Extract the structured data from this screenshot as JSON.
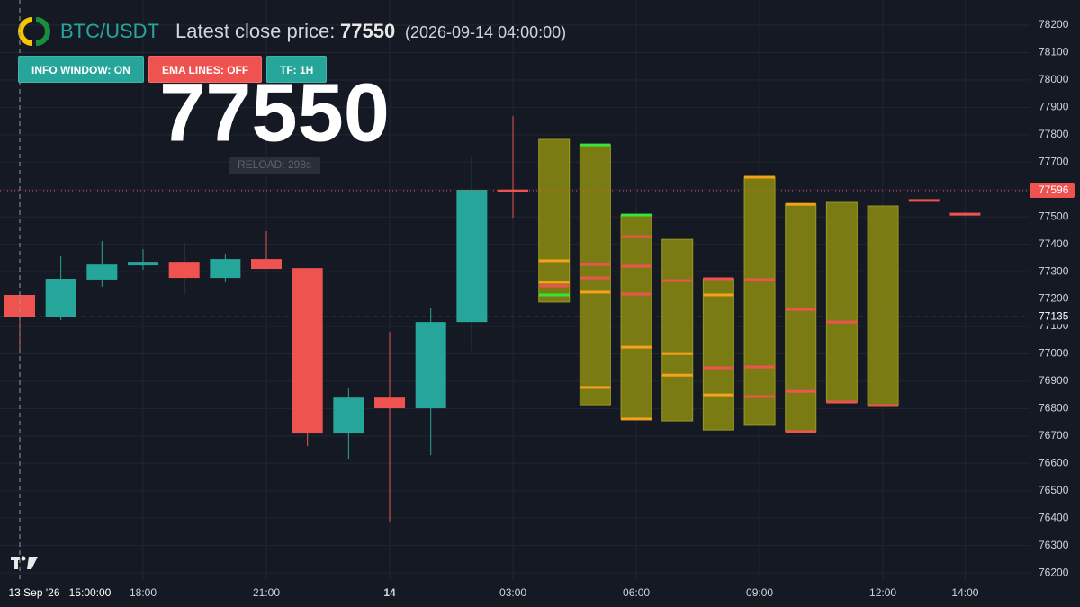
{
  "chart_data": {
    "type": "candlestick",
    "symbol": "BTC/USDT",
    "latest_close_label": "Latest close price:",
    "latest_close": 77550,
    "latest_close_time": "(2026-09-14 04:00:00)",
    "reload_label": "RELOAD: 298s",
    "categories": [
      null,
      null,
      null,
      "18:00",
      null,
      null,
      "21:00",
      null,
      null,
      "14",
      null,
      null,
      "03:00",
      null,
      null,
      "06:00",
      null,
      null,
      "09:00",
      null,
      null,
      "12:00",
      null,
      "14:00"
    ],
    "up_color": "#26a69a",
    "down_color": "#ef5350",
    "candles": {
      "open": [
        77215,
        77135,
        77271,
        77323,
        77336,
        77277,
        77346,
        77313,
        76709,
        76840,
        76801,
        77116,
        77600,
        null,
        null,
        null,
        null,
        null,
        null,
        null,
        null,
        null,
        77565,
        77515
      ],
      "high": [
        77215,
        77356,
        77412,
        77382,
        77405,
        77363,
        77448,
        77313,
        76873,
        77080,
        77169,
        77724,
        77868,
        null,
        null,
        null,
        null,
        null,
        null,
        null,
        null,
        null,
        77565,
        77515
      ],
      "low": [
        77010,
        77123,
        77245,
        77307,
        77218,
        77261,
        77310,
        76663,
        76617,
        76384,
        76630,
        77011,
        77497,
        null,
        null,
        null,
        null,
        null,
        null,
        null,
        null,
        null,
        77560,
        77505
      ],
      "close": [
        77135,
        77274,
        77326,
        77336,
        77277,
        77346,
        77310,
        76709,
        76840,
        76801,
        77116,
        77599,
        77590,
        null,
        null,
        null,
        null,
        null,
        null,
        null,
        null,
        null,
        77560,
        77505
      ]
    },
    "forecast": {
      "color": "#7b7b14",
      "high": [
        null,
        null,
        null,
        null,
        null,
        null,
        null,
        null,
        null,
        null,
        null,
        null,
        null,
        77783,
        77763,
        77507,
        77418,
        77274,
        77645,
        77546,
        77553,
        77540,
        null,
        null
      ],
      "low": [
        null,
        null,
        null,
        null,
        null,
        null,
        null,
        null,
        null,
        null,
        null,
        null,
        null,
        77189,
        76814,
        76762,
        76755,
        76722,
        76739,
        76716,
        76824,
        76811,
        null,
        null
      ],
      "levels": [
        null,
        null,
        null,
        null,
        null,
        null,
        null,
        null,
        null,
        null,
        null,
        null,
        null,
        [
          {
            "value": 77340,
            "color": "#f5a21b"
          },
          {
            "value": 77261,
            "color": "#f5a21b"
          },
          {
            "value": 77248,
            "color": "#ef5350"
          },
          {
            "value": 77215,
            "color": "#39e43a"
          }
        ],
        [
          {
            "value": 77763,
            "color": "#39e43a"
          },
          {
            "value": 77326,
            "color": "#ef5350"
          },
          {
            "value": 77277,
            "color": "#ef5350"
          },
          {
            "value": 77225,
            "color": "#f5a21b"
          },
          {
            "value": 76877,
            "color": "#f5a21b"
          }
        ],
        [
          {
            "value": 77507,
            "color": "#39e43a"
          },
          {
            "value": 77428,
            "color": "#ef5350"
          },
          {
            "value": 77320,
            "color": "#ef5350"
          },
          {
            "value": 77218,
            "color": "#ef5350"
          },
          {
            "value": 77024,
            "color": "#f5a21b"
          },
          {
            "value": 76762,
            "color": "#f5a21b"
          }
        ],
        [
          {
            "value": 77267,
            "color": "#ef5350"
          },
          {
            "value": 77001,
            "color": "#f5a21b"
          },
          {
            "value": 76922,
            "color": "#f5a21b"
          }
        ],
        [
          {
            "value": 77274,
            "color": "#ef5350"
          },
          {
            "value": 77215,
            "color": "#f5a21b"
          },
          {
            "value": 76949,
            "color": "#ef5350"
          },
          {
            "value": 76850,
            "color": "#f5a21b"
          }
        ],
        [
          {
            "value": 77645,
            "color": "#f5a21b"
          },
          {
            "value": 77271,
            "color": "#ef5350"
          },
          {
            "value": 76952,
            "color": "#ef5350"
          },
          {
            "value": 76844,
            "color": "#ef5350"
          }
        ],
        [
          {
            "value": 77546,
            "color": "#f5a21b"
          },
          {
            "value": 77162,
            "color": "#ef5350"
          },
          {
            "value": 76863,
            "color": "#ef5350"
          },
          {
            "value": 76716,
            "color": "#ef5350"
          }
        ],
        [
          {
            "value": 77116,
            "color": "#ef5350"
          },
          {
            "value": 76824,
            "color": "#ef5350"
          }
        ],
        [
          {
            "value": 76811,
            "color": "#ef5350"
          }
        ],
        null,
        null
      ]
    },
    "last_price": 77596,
    "crosshair": {
      "price": 77135,
      "date": "13 Sep '26",
      "time": "15:00:00"
    },
    "ylim": [
      76174,
      78292
    ],
    "yticks": [
      76200,
      76300,
      76400,
      76500,
      76600,
      76700,
      76800,
      76900,
      77000,
      77100,
      77200,
      77300,
      77400,
      77500,
      77600,
      77700,
      77800,
      77900,
      78000,
      78100,
      78200
    ],
    "grid": true
  },
  "controls": {
    "info_window": "INFO WINDOW: ON",
    "ema_lines": "EMA LINES: OFF",
    "timeframe": "TF: 1H"
  }
}
